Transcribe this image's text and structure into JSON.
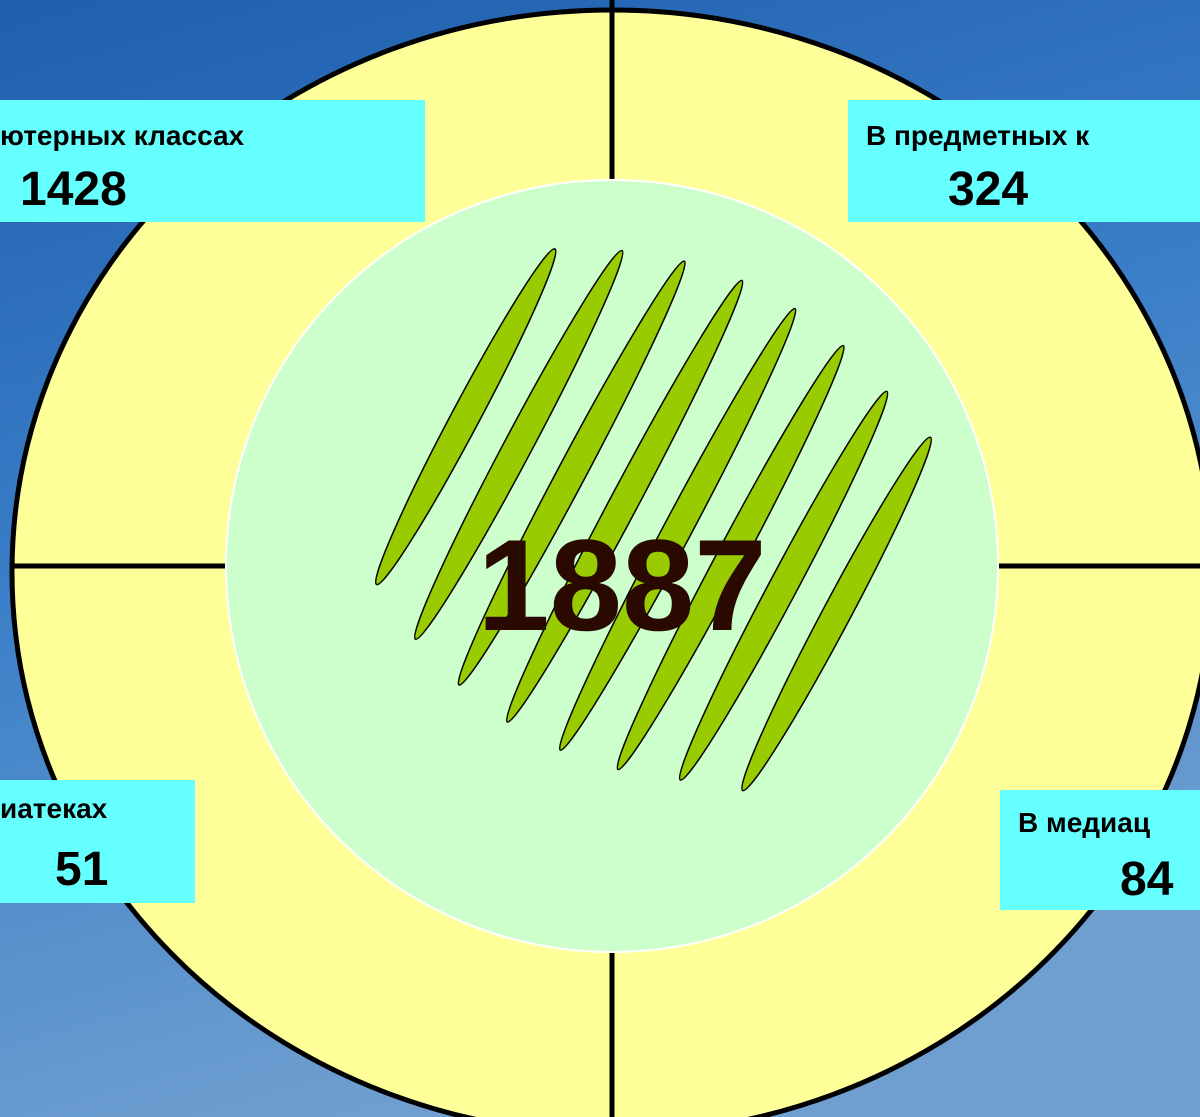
{
  "slide": {
    "center_value": 1887,
    "quadrants": [
      {
        "label": "ютерных классах",
        "value": 1428
      },
      {
        "label": "В предметных к",
        "value": 324
      },
      {
        "label": "иатеках",
        "value": 51
      },
      {
        "label": "В медиац",
        "value": 84
      }
    ]
  }
}
